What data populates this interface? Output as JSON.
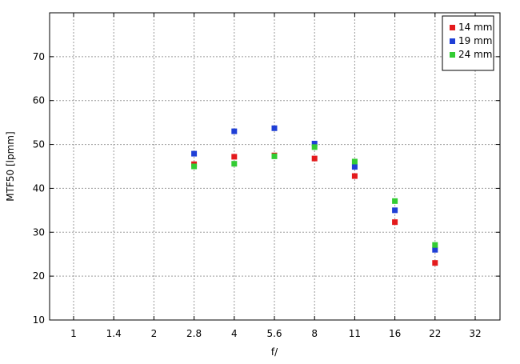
{
  "chart_data": {
    "type": "scatter",
    "title": "",
    "xlabel": "f/",
    "ylabel": "MTF50 [lpmm]",
    "x_categories": [
      "1",
      "1.4",
      "2",
      "2.8",
      "4",
      "5.6",
      "8",
      "11",
      "16",
      "22",
      "32"
    ],
    "ylim": [
      10,
      80
    ],
    "yticks": [
      10,
      20,
      30,
      40,
      50,
      60,
      70
    ],
    "grid": true,
    "legend_position": "top-right",
    "series": [
      {
        "name": "14 mm",
        "color": "#e41a1c",
        "points": [
          {
            "x": "2.8",
            "y": 45.5
          },
          {
            "x": "4",
            "y": 47.2
          },
          {
            "x": "5.6",
            "y": 47.5
          },
          {
            "x": "8",
            "y": 46.8
          },
          {
            "x": "11",
            "y": 42.8
          },
          {
            "x": "16",
            "y": 32.3
          },
          {
            "x": "22",
            "y": 23.0
          }
        ]
      },
      {
        "name": "19 mm",
        "color": "#1f3fd6",
        "points": [
          {
            "x": "2.8",
            "y": 47.9
          },
          {
            "x": "4",
            "y": 53.0
          },
          {
            "x": "5.6",
            "y": 53.7
          },
          {
            "x": "8",
            "y": 50.2
          },
          {
            "x": "11",
            "y": 44.9
          },
          {
            "x": "16",
            "y": 35.0
          },
          {
            "x": "22",
            "y": 26.0
          }
        ]
      },
      {
        "name": "24 mm",
        "color": "#33cc33",
        "points": [
          {
            "x": "2.8",
            "y": 45.0
          },
          {
            "x": "4",
            "y": 45.6
          },
          {
            "x": "5.6",
            "y": 47.3
          },
          {
            "x": "8",
            "y": 49.4
          },
          {
            "x": "11",
            "y": 46.1
          },
          {
            "x": "16",
            "y": 37.1
          },
          {
            "x": "22",
            "y": 27.1
          }
        ]
      }
    ]
  }
}
